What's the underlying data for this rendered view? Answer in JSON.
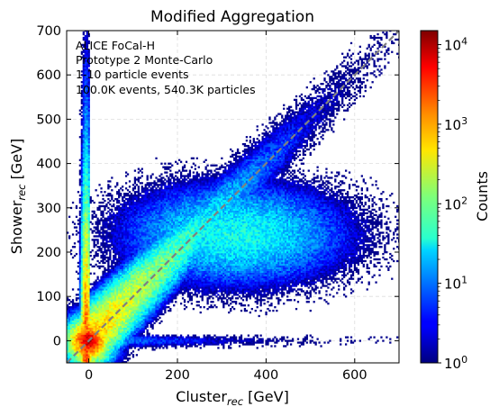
{
  "chart_data": {
    "type": "heatmap",
    "title": "Modified Aggregation",
    "xlabel": {
      "main": "Cluster",
      "sub": "rec",
      "unit": " [GeV]"
    },
    "ylabel": {
      "main": "Shower",
      "sub": "rec",
      "unit": " [GeV]"
    },
    "xlim": [
      -50,
      700
    ],
    "ylim": [
      -50,
      700
    ],
    "xticks": [
      0,
      200,
      400,
      600
    ],
    "yticks": [
      0,
      100,
      200,
      300,
      400,
      500,
      600,
      700
    ],
    "xtick_labels": [
      "0",
      "200",
      "400",
      "600"
    ],
    "ytick_labels": [
      "0",
      "100",
      "200",
      "300",
      "400",
      "500",
      "600",
      "700"
    ],
    "grid": true,
    "diagonal_reference_line": {
      "x": [
        -50,
        700
      ],
      "y": [
        -50,
        700
      ],
      "style": "dashed",
      "color": "#808080"
    },
    "annotation_lines": [
      "ALICE FoCal-H",
      "Prototype 2 Monte-Carlo",
      "1-10 particle events",
      "100.0K events, 540.3K particles"
    ],
    "colorbar": {
      "label": "Counts",
      "scale": "log",
      "range": [
        1,
        15000
      ],
      "ticks": [
        1,
        10,
        100,
        1000,
        10000
      ],
      "tick_base": "10",
      "tick_exponents": [
        "0",
        "1",
        "2",
        "3",
        "4"
      ],
      "colormap": "jet"
    },
    "density_features": {
      "description_counts": "approximate log10 counts by region",
      "core_band": {
        "x_range": [
          0,
          300
        ],
        "y_along": "y ≈ x",
        "log10_counts": [
          2.7,
          1.7
        ]
      },
      "broad_blob": {
        "x_range": [
          50,
          700
        ],
        "y_range": [
          150,
          350
        ],
        "log10_counts": [
          1.5,
          0.3
        ]
      },
      "cluster_zero_column": {
        "x": 0,
        "y_range": [
          -20,
          430
        ],
        "log10_counts": [
          3.5,
          1.5
        ]
      },
      "peak": {
        "x": 0,
        "y": 0,
        "log10_counts": 4.2
      }
    }
  }
}
